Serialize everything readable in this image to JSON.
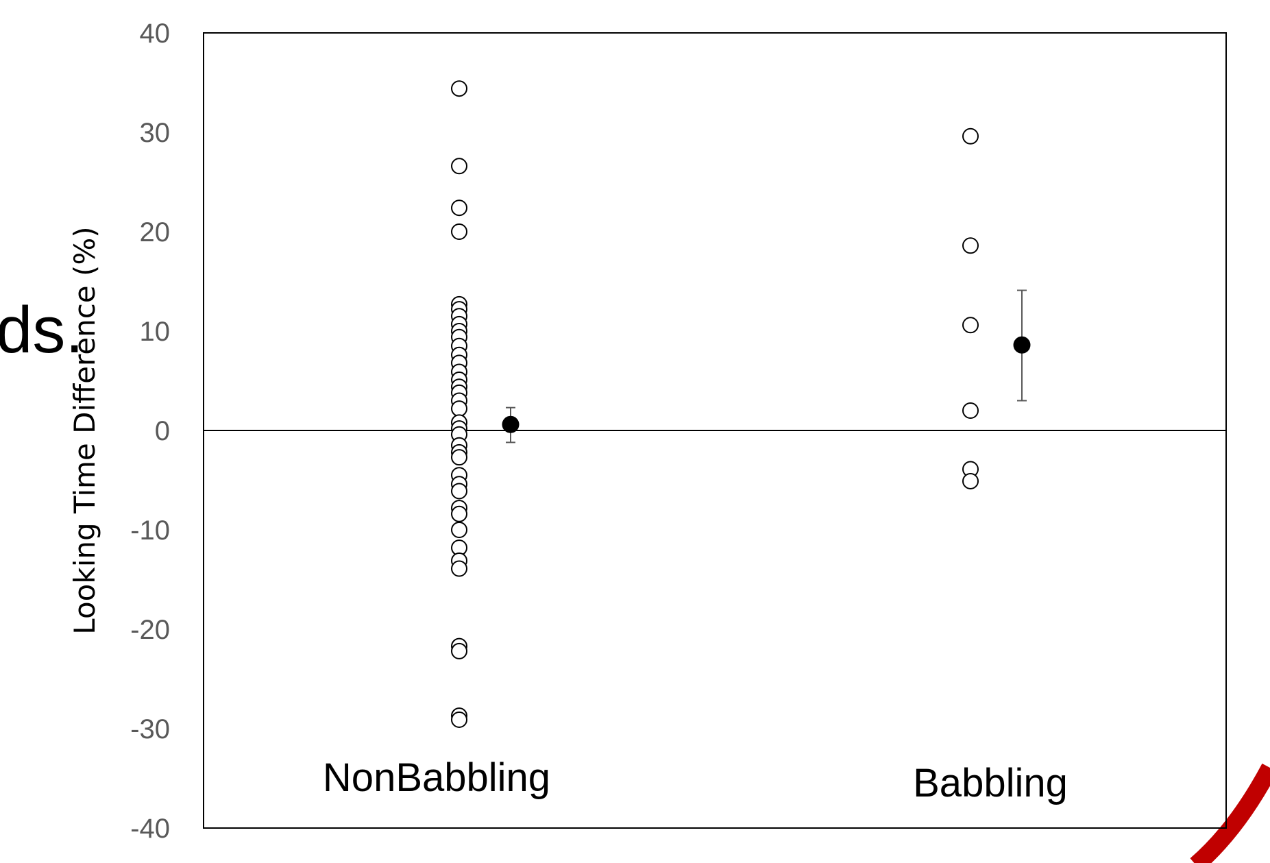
{
  "background_fragment": {
    "text": "ds.",
    "arc_color": "#c00000"
  },
  "chart_data": {
    "type": "scatter",
    "title": "",
    "ylabel": "Looking Time Difference (%)",
    "xlabel": "",
    "ylim": [
      -40,
      40
    ],
    "yticks": [
      40,
      30,
      20,
      10,
      0,
      -10,
      -20,
      -30,
      -40
    ],
    "ytick_labels": [
      "40",
      "30",
      "20",
      "10",
      "0",
      "-10",
      "-20",
      "-30",
      "-40"
    ],
    "zero_line": true,
    "grid": false,
    "categories": [
      "NonBabbling",
      "Babbling"
    ],
    "individual_points": [
      [
        34.4,
        26.6,
        22.4,
        20.0,
        12.7,
        12.2,
        11.5,
        10.7,
        10.0,
        9.4,
        8.5,
        7.6,
        6.8,
        5.9,
        5.1,
        4.4,
        3.8,
        3.0,
        2.2,
        0.8,
        0.2,
        -0.4,
        -1.5,
        -2.2,
        -2.7,
        -4.5,
        -5.4,
        -6.1,
        -7.8,
        -8.4,
        -10.0,
        -11.8,
        -13.1,
        -13.9,
        -21.7,
        -22.2,
        -28.7,
        -29.1
      ],
      [
        29.6,
        18.6,
        10.6,
        2.0,
        -3.9,
        -5.1
      ]
    ],
    "means": [
      0.6,
      8.6
    ],
    "error_low": [
      -1.2,
      3.0
    ],
    "error_high": [
      2.3,
      14.1
    ],
    "colors": {
      "individual_fill": "#ffffff",
      "individual_stroke": "#000000",
      "mean_fill": "#000000",
      "error_bar": "#595959"
    }
  }
}
